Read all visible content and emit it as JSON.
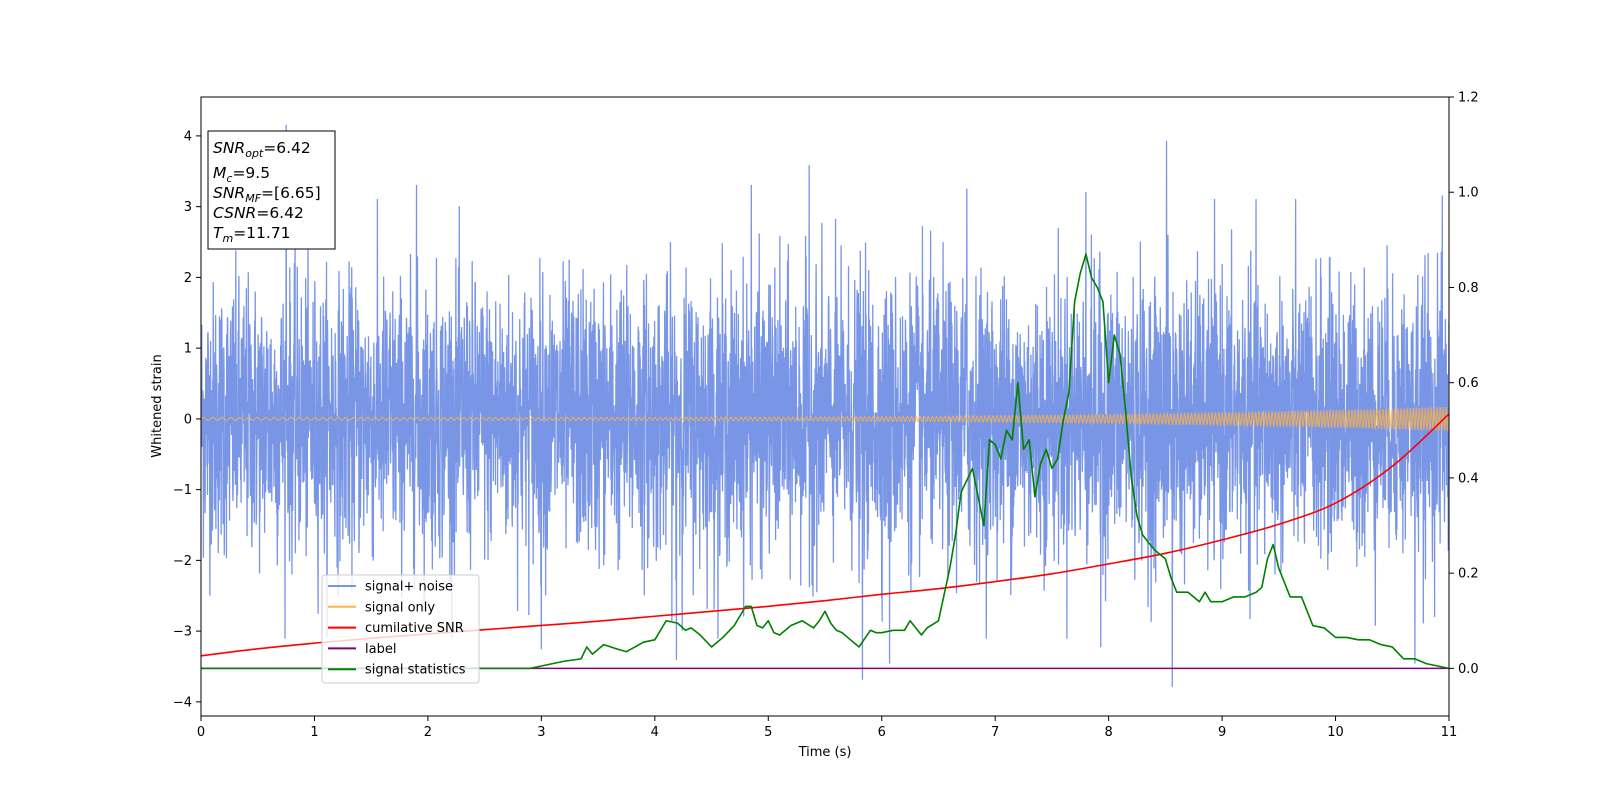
{
  "chart_data": {
    "type": "line",
    "xlabel": "Time (s)",
    "ylabel": "Whitened strain",
    "xlim": [
      0,
      11
    ],
    "ylim": [
      -4.2,
      4.55
    ],
    "y2lim": [
      -0.1,
      1.2
    ],
    "xticks": [
      0,
      1,
      2,
      3,
      4,
      5,
      6,
      7,
      8,
      9,
      10,
      11
    ],
    "yticks": [
      -4,
      -3,
      -2,
      -1,
      0,
      1,
      2,
      3,
      4
    ],
    "y2ticks": [
      0.0,
      0.2,
      0.4,
      0.6,
      0.8,
      1.0,
      1.2
    ],
    "grid": false,
    "legend_position": "lower-left",
    "annotation": {
      "lines": [
        {
          "var": "SNR",
          "sub": "opt",
          "value": "=6.42"
        },
        {
          "var": "M",
          "sub": "c",
          "value": "=9.5"
        },
        {
          "var": "SNR",
          "sub": "MF",
          "value": "=[6.65]"
        },
        {
          "var": "CSNR",
          "sub": "",
          "value": "=6.42"
        },
        {
          "var": "T",
          "sub": "m",
          "value": "=11.71"
        }
      ]
    },
    "series": [
      {
        "name": "signal+ noise",
        "color": "#7895e6",
        "axis": "left",
        "kind": "noise",
        "sigma": 0.95,
        "spikes": [
          {
            "x": 0.75,
            "y": 4.15
          },
          {
            "x": 8.51,
            "y": 3.92
          },
          {
            "x": 5.36,
            "y": 3.58
          },
          {
            "x": 10.94,
            "y": 3.15
          },
          {
            "x": 8.56,
            "y": -3.78
          },
          {
            "x": 5.83,
            "y": -3.68
          },
          {
            "x": 10.7,
            "y": -3.45
          },
          {
            "x": 6.07,
            "y": -3.45
          },
          {
            "x": 4.19,
            "y": -3.4
          },
          {
            "x": 7.93,
            "y": -3.22
          },
          {
            "x": 1.9,
            "y": 3.3
          },
          {
            "x": 4.85,
            "y": 3.3
          },
          {
            "x": 6.75,
            "y": 3.25
          },
          {
            "x": 7.8,
            "y": 3.2
          },
          {
            "x": 3.0,
            "y": -3.25
          }
        ]
      },
      {
        "name": "signal only",
        "color": "#ffb347",
        "axis": "left",
        "kind": "chirp",
        "amplitude_start": 0.02,
        "amplitude_end": 0.17
      },
      {
        "name": "cumilative SNR",
        "color": "#ff0000",
        "axis": "left",
        "x": [
          0,
          0.5,
          1,
          1.5,
          2,
          2.5,
          3,
          3.5,
          4,
          4.5,
          5,
          5.5,
          6,
          6.5,
          7,
          7.5,
          8,
          8.5,
          9,
          9.5,
          10,
          10.5,
          11
        ],
        "y": [
          -3.35,
          -3.25,
          -3.17,
          -3.1,
          -3.04,
          -2.98,
          -2.92,
          -2.86,
          -2.79,
          -2.72,
          -2.65,
          -2.57,
          -2.48,
          -2.4,
          -2.3,
          -2.19,
          -2.05,
          -1.9,
          -1.71,
          -1.49,
          -1.19,
          -0.67,
          0.07
        ]
      },
      {
        "name": "label",
        "color": "#800080",
        "axis": "right",
        "x": [
          0,
          11
        ],
        "y": [
          0.0,
          0.0
        ]
      },
      {
        "name": "signal statistics",
        "color": "#008000",
        "axis": "right",
        "x": [
          0,
          1,
          2,
          2.9,
          3.0,
          3.2,
          3.35,
          3.4,
          3.45,
          3.55,
          3.65,
          3.75,
          3.9,
          4.0,
          4.1,
          4.2,
          4.27,
          4.32,
          4.4,
          4.5,
          4.6,
          4.7,
          4.8,
          4.85,
          4.9,
          4.95,
          5.0,
          5.05,
          5.1,
          5.15,
          5.2,
          5.3,
          5.4,
          5.45,
          5.5,
          5.55,
          5.6,
          5.65,
          5.7,
          5.8,
          5.9,
          5.95,
          6.0,
          6.1,
          6.2,
          6.25,
          6.3,
          6.35,
          6.4,
          6.5,
          6.6,
          6.65,
          6.7,
          6.8,
          6.85,
          6.9,
          6.95,
          7.0,
          7.05,
          7.1,
          7.15,
          7.2,
          7.25,
          7.3,
          7.35,
          7.4,
          7.45,
          7.5,
          7.55,
          7.6,
          7.65,
          7.7,
          7.75,
          7.8,
          7.85,
          7.9,
          7.95,
          8.0,
          8.05,
          8.1,
          8.15,
          8.2,
          8.25,
          8.3,
          8.4,
          8.5,
          8.55,
          8.6,
          8.7,
          8.75,
          8.8,
          8.85,
          8.9,
          9.0,
          9.1,
          9.2,
          9.3,
          9.35,
          9.4,
          9.45,
          9.5,
          9.6,
          9.7,
          9.8,
          9.9,
          10.0,
          10.1,
          10.2,
          10.3,
          10.35,
          10.4,
          10.5,
          10.6,
          10.7,
          10.8,
          10.9,
          11.0
        ],
        "y": [
          0.0,
          0.0,
          0.0,
          0.0,
          0.005,
          0.015,
          0.02,
          0.045,
          0.03,
          0.05,
          0.042,
          0.035,
          0.055,
          0.06,
          0.1,
          0.095,
          0.08,
          0.085,
          0.07,
          0.045,
          0.065,
          0.09,
          0.13,
          0.13,
          0.09,
          0.085,
          0.1,
          0.075,
          0.07,
          0.08,
          0.09,
          0.1,
          0.085,
          0.1,
          0.12,
          0.095,
          0.08,
          0.075,
          0.065,
          0.045,
          0.08,
          0.075,
          0.075,
          0.08,
          0.08,
          0.1,
          0.085,
          0.07,
          0.085,
          0.1,
          0.21,
          0.28,
          0.37,
          0.42,
          0.36,
          0.3,
          0.48,
          0.47,
          0.44,
          0.5,
          0.48,
          0.6,
          0.46,
          0.48,
          0.36,
          0.43,
          0.46,
          0.42,
          0.44,
          0.52,
          0.58,
          0.77,
          0.83,
          0.87,
          0.82,
          0.8,
          0.77,
          0.6,
          0.7,
          0.66,
          0.54,
          0.4,
          0.32,
          0.28,
          0.25,
          0.23,
          0.19,
          0.16,
          0.16,
          0.15,
          0.14,
          0.16,
          0.14,
          0.14,
          0.15,
          0.15,
          0.16,
          0.17,
          0.23,
          0.26,
          0.21,
          0.15,
          0.15,
          0.09,
          0.085,
          0.065,
          0.065,
          0.06,
          0.06,
          0.055,
          0.05,
          0.045,
          0.02,
          0.02,
          0.01,
          0.005,
          0.0
        ]
      }
    ]
  }
}
